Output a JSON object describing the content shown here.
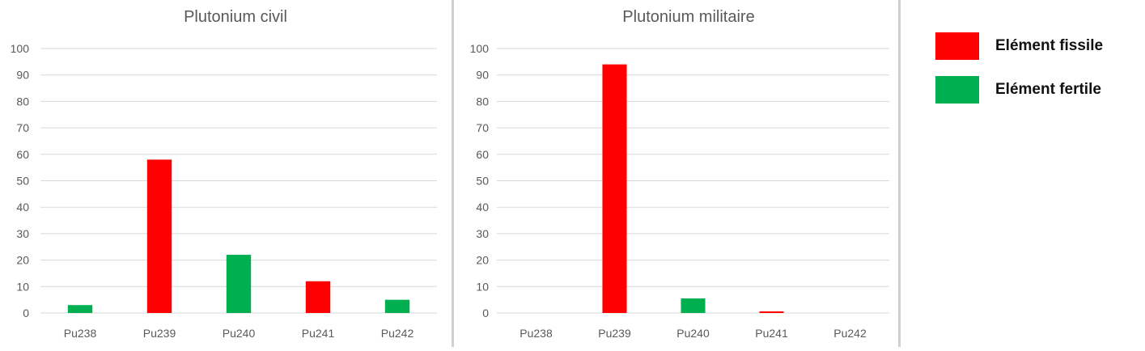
{
  "colors": {
    "fissile": "#ff0000",
    "fertile": "#00b050",
    "grid": "#d9d9d9",
    "text": "#595959"
  },
  "legend": [
    {
      "label": "Elément fissile",
      "color": "#ff0000"
    },
    {
      "label": "Elément fertile",
      "color": "#00b050"
    }
  ],
  "chart_data": [
    {
      "type": "bar",
      "title": "Plutonium civil",
      "categories": [
        "Pu238",
        "Pu239",
        "Pu240",
        "Pu241",
        "Pu242"
      ],
      "values": [
        3,
        58,
        22,
        12,
        5
      ],
      "bar_colors": [
        "#00b050",
        "#ff0000",
        "#00b050",
        "#ff0000",
        "#00b050"
      ],
      "ylim": [
        0,
        100
      ],
      "yticks": [
        0,
        10,
        20,
        30,
        40,
        50,
        60,
        70,
        80,
        90,
        100
      ],
      "grid": true
    },
    {
      "type": "bar",
      "title": "Plutonium militaire",
      "categories": [
        "Pu238",
        "Pu239",
        "Pu240",
        "Pu241",
        "Pu242"
      ],
      "values": [
        0,
        94,
        5.5,
        0.6,
        0
      ],
      "bar_colors": [
        "#00b050",
        "#ff0000",
        "#00b050",
        "#ff0000",
        "#00b050"
      ],
      "ylim": [
        0,
        100
      ],
      "yticks": [
        0,
        10,
        20,
        30,
        40,
        50,
        60,
        70,
        80,
        90,
        100
      ],
      "grid": true
    }
  ]
}
